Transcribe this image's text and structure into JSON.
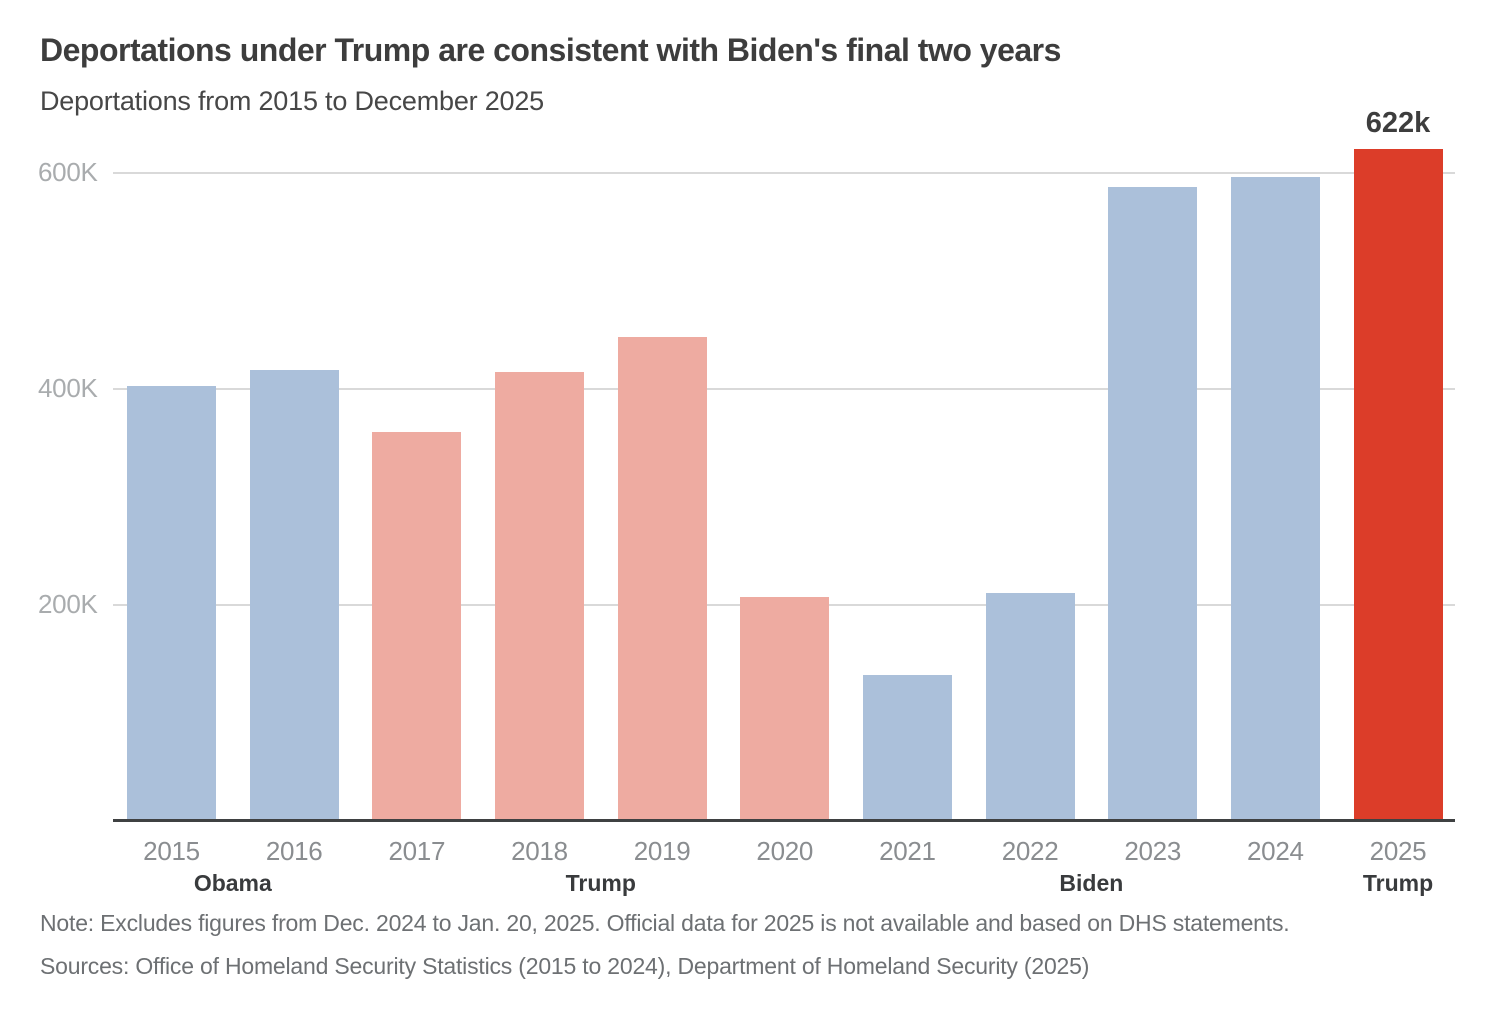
{
  "header": {
    "title": "Deportations under Trump are consistent with Biden's final two years",
    "subtitle": "Deportations from 2015 to December 2025"
  },
  "chart_data": {
    "type": "bar",
    "title": "Deportations under Trump are consistent with Biden's final two years",
    "subtitle": "Deportations from 2015 to December 2025",
    "categories": [
      "2015",
      "2016",
      "2017",
      "2018",
      "2019",
      "2020",
      "2021",
      "2022",
      "2023",
      "2024",
      "2025"
    ],
    "values": [
      403,
      418,
      360,
      416,
      448,
      207,
      135,
      211,
      587,
      596,
      622
    ],
    "unit": "thousands",
    "xlabel": "",
    "ylabel": "",
    "ylim": [
      0,
      650
    ],
    "grid": "horizontal",
    "legend_position": "none",
    "yticks": [
      {
        "value": 200,
        "label": "200K"
      },
      {
        "value": 400,
        "label": "400K"
      },
      {
        "value": 600,
        "label": "600K"
      }
    ],
    "president_groups": [
      {
        "label": "Obama",
        "bars": [
          0,
          1
        ],
        "color": "#abc0da"
      },
      {
        "label": "Trump",
        "bars": [
          2,
          5
        ],
        "color": "#eeaba1"
      },
      {
        "label": "Biden",
        "bars": [
          6,
          9
        ],
        "color": "#abc0da"
      },
      {
        "label": "Trump",
        "bars": [
          10,
          10
        ],
        "color": "#dc3d29"
      }
    ],
    "annotation": {
      "category": "2025",
      "label": "622k"
    },
    "colors": {
      "blue": "#abc0da",
      "pink": "#eeaba1",
      "red": "#dc3d29",
      "gridline": "#d9d9d9",
      "axis_line": "#3f4142"
    }
  },
  "footer": {
    "note": "Note: Excludes figures from Dec. 2024 to Jan. 20, 2025. Official data for 2025 is not available and based on DHS statements.",
    "sources": "Sources: Office of Homeland Security Statistics (2015 to 2024), Department of Homeland Security (2025)"
  }
}
